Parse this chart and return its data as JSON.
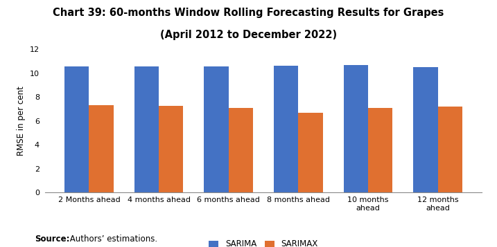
{
  "title_line1": "Chart 39: 60-months Window Rolling Forecasting Results for Grapes",
  "title_line2": "(April 2012 to December 2022)",
  "categories": [
    "2 Months ahead",
    "4 months ahead",
    "6 months ahead",
    "8 months ahead",
    "10 months\nahead",
    "12 months\nahead"
  ],
  "sarima": [
    10.6,
    10.55,
    10.6,
    10.65,
    10.7,
    10.5
  ],
  "sarimax": [
    7.3,
    7.25,
    7.1,
    6.7,
    7.1,
    7.2
  ],
  "sarima_color": "#4472C4",
  "sarimax_color": "#E07030",
  "ylabel": "RMSE in per cent",
  "ylim": [
    0,
    12
  ],
  "yticks": [
    0,
    2,
    4,
    6,
    8,
    10,
    12
  ],
  "legend_labels": [
    "SARIMA",
    "SARIMAX"
  ],
  "source_bold": "Source:",
  "source_text": " Authors’ estimations.",
  "bar_width": 0.35,
  "title_fontsize": 10.5,
  "axis_fontsize": 8.5,
  "tick_fontsize": 8.0,
  "legend_fontsize": 8.5,
  "source_fontsize": 8.5
}
